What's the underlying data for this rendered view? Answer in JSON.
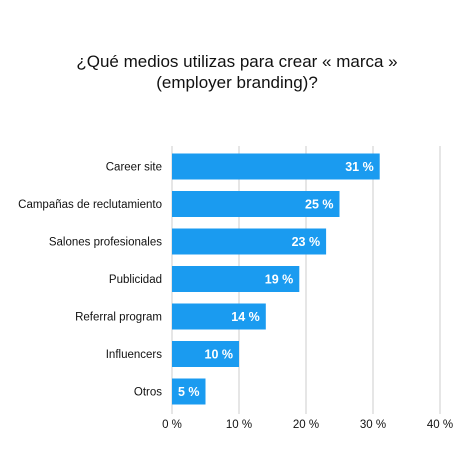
{
  "chart_data": {
    "type": "bar",
    "orientation": "horizontal",
    "title_lines": [
      "¿Qué medios utilizas para crear « marca »",
      "(employer branding)?"
    ],
    "categories": [
      "Career site",
      "Campañas de reclutamiento",
      "Salones profesionales",
      "Publicidad",
      "Referral program",
      "Influencers",
      "Otros"
    ],
    "values": [
      31,
      25,
      23,
      19,
      14,
      10,
      5
    ],
    "value_labels": [
      "31 %",
      "25 %",
      "23 %",
      "19 %",
      "14 %",
      "10 %",
      "5 %"
    ],
    "xlim": [
      0,
      40
    ],
    "x_ticks": [
      0,
      10,
      20,
      30,
      40
    ],
    "x_tick_labels": [
      "0 %",
      "10 %",
      "20 %",
      "30 %",
      "40 %"
    ],
    "grid": true,
    "bar_color": "#1a9bf0",
    "grid_color": "#cccccc"
  }
}
